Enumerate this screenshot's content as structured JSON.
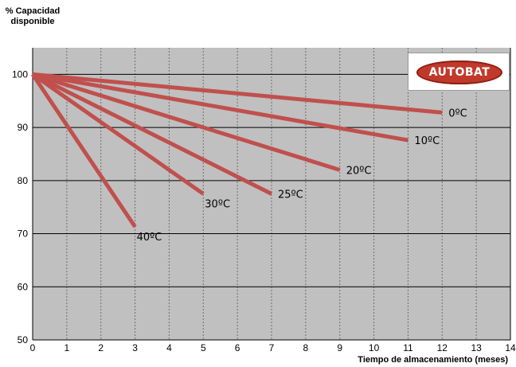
{
  "chart_data": {
    "type": "line",
    "title": "",
    "ylabel_lines": [
      "% Capacidad",
      "disponible"
    ],
    "xlabel": "Tiempo de almacenamiento (meses)",
    "xlim": [
      0,
      14
    ],
    "ylim": [
      50,
      105
    ],
    "x_ticks": [
      0,
      1,
      2,
      3,
      4,
      5,
      6,
      7,
      8,
      9,
      10,
      11,
      12,
      13,
      14
    ],
    "y_ticks": [
      50,
      60,
      70,
      80,
      90,
      100
    ],
    "grid": true,
    "series": [
      {
        "name": "0ºC",
        "x": [
          0,
          12
        ],
        "y": [
          100,
          92.8
        ]
      },
      {
        "name": "10ºC",
        "x": [
          0,
          11
        ],
        "y": [
          100,
          87.6
        ]
      },
      {
        "name": "20ºC",
        "x": [
          0,
          9
        ],
        "y": [
          100,
          82
        ]
      },
      {
        "name": "25ºC",
        "x": [
          0,
          7
        ],
        "y": [
          100,
          77.5
        ]
      },
      {
        "name": "30ºC",
        "x": [
          0,
          5
        ],
        "y": [
          100,
          77.5
        ]
      },
      {
        "name": "40ºC",
        "x": [
          0,
          3
        ],
        "y": [
          100,
          71.3
        ]
      }
    ],
    "line_color": "#c0504d",
    "plot_background": "#c0c0c0"
  },
  "logo": {
    "text": "AUTOBAT",
    "color": "#c0392b"
  }
}
